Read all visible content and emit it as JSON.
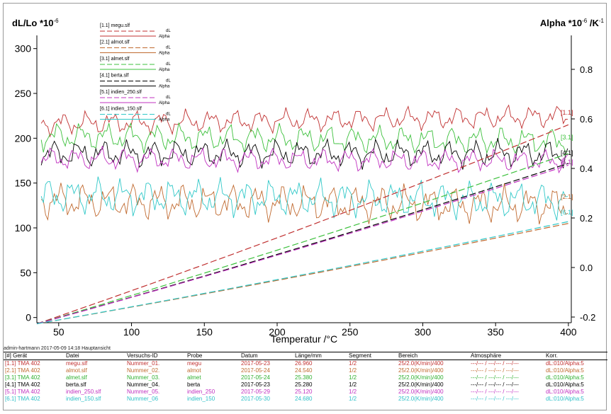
{
  "chart_data": {
    "type": "line",
    "title": "",
    "xlabel": "Temperatur /°C",
    "ylabel_left": {
      "main": "dL/Lo *10",
      "sup": "-6"
    },
    "ylabel_right": {
      "main": "Alpha *10",
      "sup": "-6",
      "tail": " /K",
      "sup2": "-1"
    },
    "xlim": [
      35,
      402
    ],
    "ylim_left": [
      -5,
      310
    ],
    "ylim_right": [
      -0.22,
      0.92
    ],
    "xticks": [
      50,
      100,
      150,
      200,
      250,
      300,
      350,
      400
    ],
    "yticks_left": [
      0,
      50,
      100,
      150,
      200,
      250,
      300
    ],
    "yticks_right": [
      -0.2,
      0.0,
      0.2,
      0.4,
      0.6,
      0.8
    ],
    "grid": false,
    "legend_position": "top-left",
    "legend": [
      {
        "file": "[1.1] megu.slf",
        "dl": "dL",
        "alpha": "Alpha"
      },
      {
        "file": "[2.1] almot.slf",
        "dl": "dL",
        "alpha": "Alpha"
      },
      {
        "file": "[3.1] almet.slf",
        "dl": "dL",
        "alpha": "Alpha"
      },
      {
        "file": "[4.1] berta.slf",
        "dl": "dL",
        "alpha": "Alpha"
      },
      {
        "file": "[5.1] indien_250.slf",
        "dl": "dL",
        "alpha": "Alpha"
      },
      {
        "file": "[6.1] indien_150.slf",
        "dl": "dL",
        "alpha": "Alpha"
      }
    ],
    "series": [
      {
        "id": "[1.1]",
        "color": "#c03030",
        "dl": {
          "x": [
            35,
            400
          ],
          "y": [
            -7,
            215
          ]
        },
        "alpha": {
          "base": 0.58,
          "amp": 0.025,
          "trend": 0.03
        }
      },
      {
        "id": "[2.1]",
        "color": "#c06a30",
        "dl": {
          "x": [
            35,
            400
          ],
          "y": [
            -7,
            105
          ]
        },
        "alpha": {
          "base": 0.27,
          "amp": 0.04,
          "trend": -0.02
        }
      },
      {
        "id": "[3.1]",
        "color": "#3cc03c",
        "dl": {
          "x": [
            35,
            400
          ],
          "y": [
            -7,
            183
          ]
        },
        "alpha": {
          "base": 0.53,
          "amp": 0.03,
          "trend": -0.02
        }
      },
      {
        "id": "[4.1]",
        "color": "#000000",
        "dl": {
          "x": [
            35,
            400
          ],
          "y": [
            -7,
            172
          ]
        },
        "alpha": {
          "base": 0.46,
          "amp": 0.03,
          "trend": 0.0
        }
      },
      {
        "id": "[5.1]",
        "color": "#c030c0",
        "dl": {
          "x": [
            35,
            400
          ],
          "y": [
            -7,
            170
          ]
        },
        "alpha": {
          "base": 0.44,
          "amp": 0.025,
          "trend": -0.01
        }
      },
      {
        "id": "[6.1]",
        "color": "#30c8c8",
        "dl": {
          "x": [
            35,
            400
          ],
          "y": [
            -7,
            107
          ]
        },
        "alpha": {
          "base": 0.29,
          "amp": 0.04,
          "trend": -0.02
        }
      }
    ],
    "end_labels": [
      "[1.1]",
      "[3.1]",
      "[4.1]",
      "[5.1]",
      "[2.1]",
      "[6.1]"
    ]
  },
  "footer": "admin-hartmann   2017-05-09 14:18   Hauptansicht",
  "table": {
    "headers": [
      "[#] Gerät",
      "Datei",
      "Versuchs-ID",
      "Probe",
      "Datum",
      "Länge/mm",
      "Segment",
      "Bereich",
      "Atmosphäre",
      "Korr."
    ],
    "rows": [
      {
        "color": "#c03030",
        "cells": [
          "[1.1] TMA 402",
          "megu.slf",
          "Nummer_01.",
          "megu",
          "2017-05-23",
          "26.960",
          "1/2",
          "25/2.0(K/min)/400",
          "---/--- / ---/--- / ---/---",
          "dL:010/Alpha:5"
        ]
      },
      {
        "color": "#c06a30",
        "cells": [
          "[2.1] TMA 402",
          "almot.slf",
          "Nummer_02.",
          "almot",
          "2017-05-24",
          "24.540",
          "1/2",
          "25/2.0(K/min)/400",
          "---/--- / ---/--- / ---/---",
          "dL:010/Alpha:5"
        ]
      },
      {
        "color": "#30b030",
        "cells": [
          "[3.1] TMA 402",
          "almet.slf",
          "Nummer_03.",
          "almet",
          "2017-05-24",
          "25.380",
          "1/2",
          "25/2.0(K/min)/400",
          "---/--- / ---/--- / ---/---",
          "dL:010/Alpha:5"
        ]
      },
      {
        "color": "#000000",
        "cells": [
          "[4.1] TMA 402",
          "berta.slf",
          "Nummer_04.",
          "berta",
          "2017-05-23",
          "25.280",
          "1/2",
          "25/2.0(K/min)/400",
          "---/--- / ---/--- / ---/---",
          "dL:010/Alpha:5"
        ]
      },
      {
        "color": "#c030c0",
        "cells": [
          "[5.1] TMA 402",
          "indien_250.slf",
          "Nummer_05.",
          "indien_250",
          "2017-05-29",
          "25.120",
          "1/2",
          "25/2.0(K/min)/400",
          "---/--- / ---/--- / ---/---",
          "dL:010/Alpha:5"
        ]
      },
      {
        "color": "#30c0c8",
        "cells": [
          "[6.1] TMA 402",
          "indien_150.slf",
          "Nummer_06",
          "indien_150",
          "2017-05-30",
          "24.680",
          "1/2",
          "25/2.0(K/min)/400",
          "---/--- / ---/--- / ---/---",
          "dL:010/Alpha:5"
        ]
      }
    ]
  }
}
